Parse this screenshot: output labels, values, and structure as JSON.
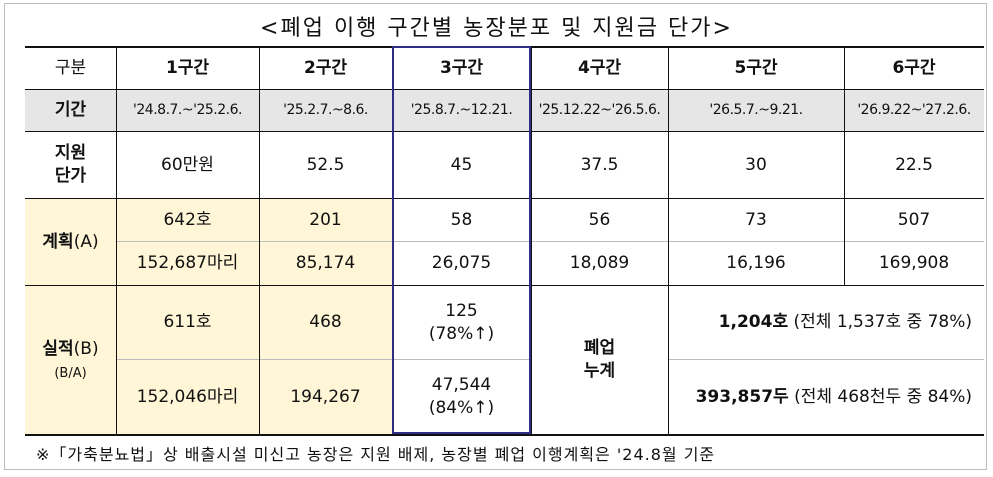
{
  "title": "<폐업 이행 구간별 농장분포 및 지원금 단가>",
  "header": {
    "label": "구분",
    "sections": [
      "1구간",
      "2구간",
      "3구간",
      "4구간",
      "5구간",
      "6구간"
    ]
  },
  "period": {
    "label": "기간",
    "values": [
      "'24.8.7.~'25.2.6.",
      "'25.2.7.~8.6.",
      "'25.8.7.~12.21.",
      "'25.12.22~'26.5.6.",
      "'26.5.7.~9.21.",
      "'26.9.22~'27.2.6."
    ]
  },
  "unit_price": {
    "label_line1": "지원",
    "label_line2": "단가",
    "values": [
      "60만원",
      "52.5",
      "45",
      "37.5",
      "30",
      "22.5"
    ]
  },
  "plan": {
    "label_bold": "계획",
    "label_suffix": "(A)",
    "farms": [
      "642호",
      "201",
      "58",
      "56",
      "73",
      "507"
    ],
    "heads": [
      "152,687마리",
      "85,174",
      "26,075",
      "18,089",
      "16,196",
      "169,908"
    ]
  },
  "result": {
    "label_bold": "실적",
    "label_suffix": "(B)",
    "ratio_label": "(B/A)",
    "farms": [
      "611호",
      "468"
    ],
    "heads": [
      "152,046마리",
      "194,267"
    ],
    "sec3_farms": "125",
    "sec3_farms_pct": "(78%↑)",
    "sec3_heads": "47,544",
    "sec3_heads_pct": "(84%↑)",
    "cumulative_line1": "폐업",
    "cumulative_line2": "누계",
    "cum_farms_bold": "1,204호",
    "cum_farms_rest": " (전체 1,537호 중 78%)",
    "cum_heads_bold": "393,857두",
    "cum_heads_rest": " (전체 468천두 중 84%)"
  },
  "footnote": "※「가축분뇨법」상 배출시설 미신고 농장은 지원 배제, 농장별 폐업 이행계획은 '24.8월 기준"
}
